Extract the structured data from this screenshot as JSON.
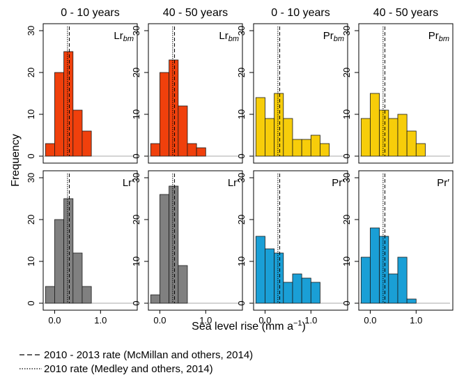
{
  "colors": {
    "orange": "#f0400c",
    "yellow": "#f7cd0a",
    "grey": "#808080",
    "blue": "#1a9fd6",
    "outline": "#1a1a1a"
  },
  "chart_data": {
    "type": "bar",
    "ylabel": "Frequency",
    "xlabel": "Sea level rise (mm a",
    "xlabel_sup": "−1",
    "xlabel_close": ")",
    "x_ticks": [
      "0.0",
      "1.0"
    ],
    "y_ticks": [
      "0",
      "10",
      "20",
      "30"
    ],
    "xlim": [
      -0.25,
      1.8
    ],
    "ylim": [
      0,
      30
    ],
    "bin_width": 0.2,
    "bin_start": -0.2,
    "reference_lines": [
      {
        "name": "2010 - 2013 rate (McMillan and others, 2014)",
        "style": "dashed",
        "x": 0.32
      },
      {
        "name": "2010 rate (Medley and others, 2014)",
        "style": "dotted",
        "x": 0.28
      }
    ],
    "panels": [
      {
        "column_title": "0 - 10 years",
        "label": "Lr",
        "label_sub": "bm",
        "label_prime": false,
        "color": "orange",
        "values": [
          3,
          20,
          25,
          11,
          6
        ]
      },
      {
        "column_title": "40 - 50 years",
        "label": "Lr",
        "label_sub": "bm",
        "label_prime": false,
        "color": "orange",
        "values": [
          3,
          20,
          23,
          12,
          3,
          2
        ]
      },
      {
        "column_title": "0 - 10 years",
        "label": "Pr",
        "label_sub": "bm",
        "label_prime": false,
        "color": "yellow",
        "values": [
          14,
          9,
          15,
          9,
          4,
          4,
          5,
          3
        ]
      },
      {
        "column_title": "40 - 50 years",
        "label": "Pr",
        "label_sub": "bm",
        "label_prime": false,
        "color": "yellow",
        "values": [
          9,
          15,
          11,
          9,
          10,
          6,
          3
        ]
      },
      {
        "label": "Lr",
        "label_sub": "",
        "label_prime": true,
        "color": "grey",
        "values": [
          4,
          20,
          25,
          12,
          4
        ]
      },
      {
        "label": "Lr",
        "label_sub": "",
        "label_prime": true,
        "color": "grey",
        "values": [
          2,
          26,
          28,
          9
        ]
      },
      {
        "label": "Pr",
        "label_sub": "",
        "label_prime": true,
        "color": "blue",
        "values": [
          16,
          13,
          12,
          5,
          7,
          6,
          5
        ]
      },
      {
        "label": "Pr",
        "label_sub": "",
        "label_prime": true,
        "color": "blue",
        "values": [
          11,
          18,
          16,
          7,
          11,
          1
        ]
      }
    ],
    "legend": [
      {
        "text": "2010 - 2013 rate (McMillan and others, 2014)",
        "style": "dashed"
      },
      {
        "text": "2010 rate (Medley and others, 2014)",
        "style": "dotted"
      }
    ]
  }
}
